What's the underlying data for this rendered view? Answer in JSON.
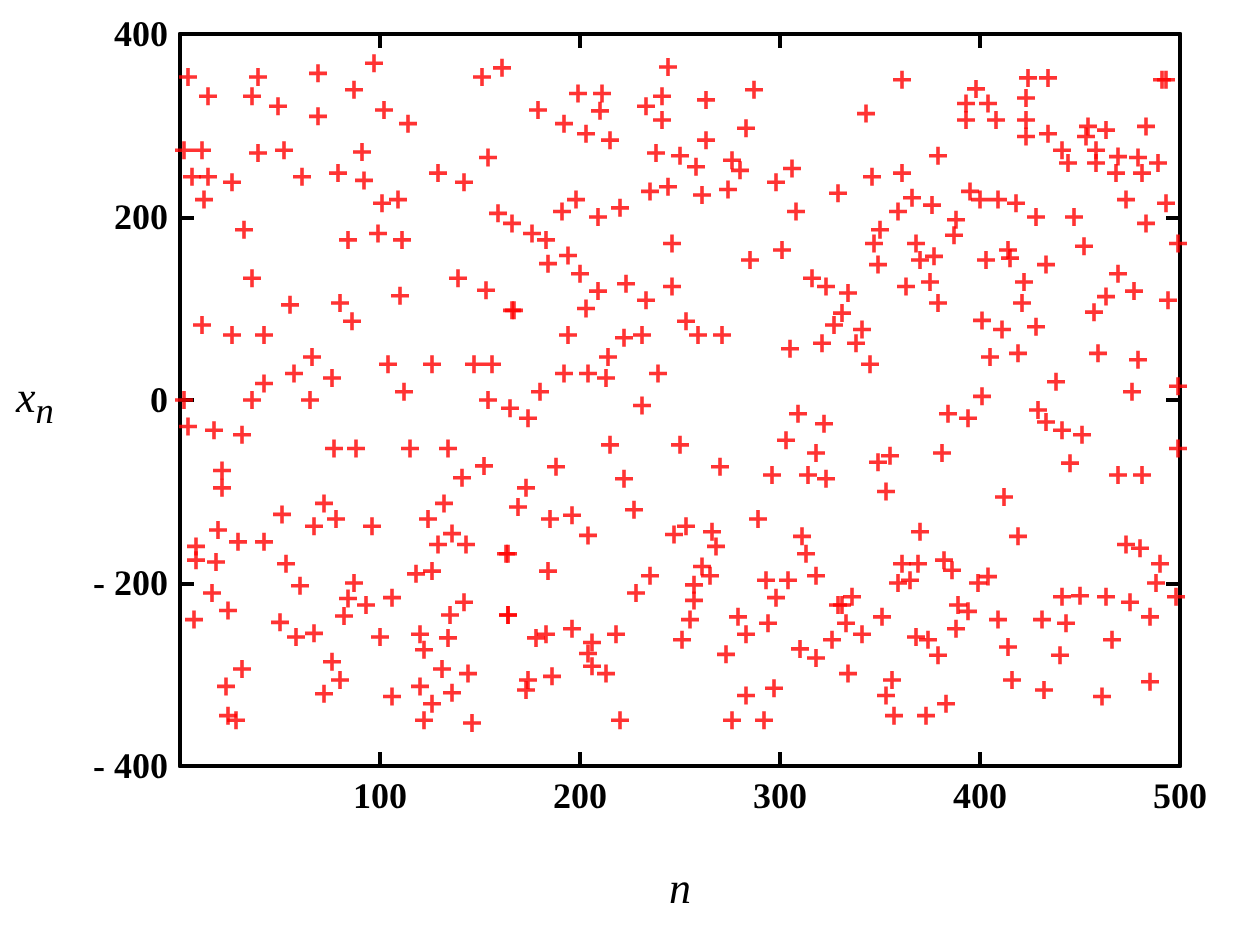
{
  "chart_data": {
    "type": "scatter",
    "xlabel": "n",
    "ylabel": "x$_{n}$",
    "xlim": [
      0,
      500
    ],
    "xticks": [
      100,
      200,
      300,
      400,
      500
    ],
    "ylim": [
      -400,
      400
    ],
    "yticks": [
      -400,
      -200,
      0,
      200,
      400
    ],
    "grid": false,
    "marker": "cross",
    "series": [
      {
        "color": "#ff0000",
        "x": [
          4,
          14,
          39,
          69,
          97,
          36,
          49,
          87,
          161,
          151,
          69,
          102,
          114,
          2,
          11,
          39,
          52,
          91,
          6,
          14,
          26,
          12,
          61,
          79,
          92,
          129,
          142,
          154,
          101,
          109,
          159,
          32,
          84,
          99,
          111,
          36,
          55,
          80,
          86,
          110,
          139,
          153,
          166,
          11,
          26,
          42,
          66,
          57,
          76,
          42,
          104,
          126,
          147,
          156,
          112,
          36,
          65,
          2,
          154,
          4,
          17,
          31,
          77,
          88,
          115,
          134,
          21,
          21,
          141,
          152,
          51,
          72,
          78,
          67,
          96,
          19,
          29,
          42,
          8,
          8,
          18,
          53,
          124,
          132,
          136,
          129,
          143,
          163,
          60,
          87,
          118,
          126,
          16,
          7,
          24,
          50,
          84,
          93,
          106,
          142,
          135,
          164,
          58,
          67,
          82,
          100,
          120,
          134,
          122,
          31,
          23,
          76,
          80,
          72,
          106,
          120,
          131,
          144,
          136,
          126,
          122,
          146,
          24,
          28,
          244,
          199,
          211,
          241,
          179,
          210,
          233,
          263,
          287,
          192,
          203,
          215,
          241,
          283,
          238,
          250,
          258,
          263,
          276,
          280,
          298,
          306,
          235,
          244,
          261,
          274,
          191,
          198,
          209,
          220,
          308,
          329,
          166,
          176,
          183,
          246,
          301,
          184,
          194,
          200,
          285,
          223,
          209,
          233,
          246,
          316,
          323,
          167,
          203,
          253,
          259,
          271,
          327,
          194,
          222,
          231,
          321,
          305,
          214,
          192,
          204,
          213,
          239,
          180,
          165,
          174,
          231,
          309,
          322,
          215,
          250,
          303,
          318,
          188,
          222,
          270,
          296,
          314,
          323,
          173,
          169,
          185,
          196,
          204,
          227,
          247,
          253,
          266,
          268,
          289,
          311,
          313,
          164,
          184,
          235,
          228,
          261,
          257,
          257,
          265,
          293,
          304,
          318,
          298,
          329,
          164,
          255,
          279,
          294,
          283,
          178,
          183,
          196,
          218,
          206,
          204,
          251,
          310,
          318,
          326,
          273,
          174,
          173,
          186,
          206,
          213,
          283,
          297,
          220,
          276,
          292,
          361,
          343,
          398,
          393,
          404,
          393,
          408,
          424,
          434,
          423,
          423,
          423,
          434,
          491,
          493,
          454,
          463,
          483,
          453,
          441,
          444,
          458,
          458,
          469,
          479,
          489,
          468,
          481,
          379,
          361,
          346,
          395,
          400,
          409,
          418,
          366,
          376,
          359,
          428,
          447,
          473,
          483,
          493,
          388,
          387,
          350,
          347,
          349,
          368,
          370,
          377,
          403,
          414,
          415,
          433,
          452,
          422,
          421,
          375,
          363,
          379,
          469,
          463,
          477,
          457,
          494,
          499,
          334,
          331,
          341,
          338,
          345,
          401,
          411,
          428,
          419,
          405,
          459,
          479,
          438,
          476,
          499,
          401,
          384,
          394,
          429,
          433,
          441,
          451,
          499,
          445,
          381,
          349,
          355,
          353,
          469,
          481,
          412,
          419,
          370,
          473,
          480,
          490,
          488,
          498,
          361,
          369,
          382,
          386,
          359,
          365,
          399,
          404,
          441,
          450,
          463,
          475,
          331,
          336,
          333,
          341,
          351,
          389,
          394,
          388,
          409,
          431,
          443,
          485,
          368,
          374,
          379,
          414,
          440,
          466,
          334,
          356,
          353,
          416,
          432,
          485,
          461,
          383,
          357,
          373
        ],
        "values": [
          353,
          332,
          353,
          357,
          368,
          332,
          321,
          339,
          363,
          353,
          310,
          317,
          302,
          273,
          273,
          270,
          273,
          271,
          244,
          244,
          238,
          219,
          244,
          248,
          240,
          248,
          238,
          265,
          215,
          219,
          204,
          186,
          175,
          182,
          175,
          133,
          104,
          106,
          86,
          114,
          133,
          120,
          98,
          82,
          71,
          71,
          47,
          29,
          24,
          18,
          39,
          39,
          39,
          39,
          9,
          0,
          0,
          0,
          0,
          -29,
          -33,
          -38,
          -53,
          -53,
          -53,
          -53,
          -77,
          -96,
          -85,
          -72,
          -125,
          -113,
          -130,
          -138,
          -138,
          -142,
          -155,
          -155,
          -160,
          -175,
          -177,
          -179,
          -130,
          -113,
          -146,
          -158,
          -158,
          -168,
          -203,
          -200,
          -190,
          -187,
          -211,
          -240,
          -230,
          -243,
          -217,
          -224,
          -216,
          -221,
          -235,
          -235,
          -259,
          -255,
          -236,
          -259,
          -256,
          -260,
          -273,
          -294,
          -313,
          -286,
          -306,
          -321,
          -324,
          -313,
          -294,
          -299,
          -320,
          -332,
          -350,
          -353,
          -345,
          -350,
          364,
          335,
          335,
          332,
          317,
          316,
          321,
          328,
          339,
          302,
          291,
          284,
          306,
          297,
          270,
          267,
          255,
          284,
          262,
          251,
          238,
          253,
          228,
          233,
          224,
          230,
          206,
          219,
          200,
          210,
          206,
          226,
          193,
          182,
          175,
          171,
          164,
          149,
          158,
          138,
          153,
          127,
          119,
          109,
          124,
          133,
          124,
          98,
          100,
          86,
          71,
          71,
          82,
          71,
          68,
          71,
          62,
          56,
          47,
          29,
          29,
          24,
          29,
          9,
          -9,
          -20,
          -6,
          -15,
          -26,
          -49,
          -49,
          -44,
          -58,
          -73,
          -86,
          -73,
          -82,
          -82,
          -86,
          -96,
          -117,
          -130,
          -126,
          -148,
          -120,
          -147,
          -138,
          -144,
          -160,
          -130,
          -149,
          -168,
          -168,
          -187,
          -192,
          -211,
          -182,
          -202,
          -219,
          -192,
          -197,
          -197,
          -192,
          -216,
          -224,
          -235,
          -240,
          -237,
          -244,
          -256,
          -260,
          -256,
          -250,
          -256,
          -265,
          -277,
          -262,
          -272,
          -282,
          -262,
          -278,
          -306,
          -317,
          -302,
          -291,
          -299,
          -323,
          -315,
          -350,
          -350,
          -350,
          350,
          313,
          340,
          324,
          324,
          306,
          306,
          352,
          352,
          330,
          306,
          288,
          291,
          350,
          350,
          299,
          295,
          299,
          288,
          273,
          259,
          273,
          259,
          266,
          265,
          259,
          248,
          248,
          267,
          248,
          244,
          228,
          219,
          219,
          215,
          221,
          213,
          206,
          200,
          200,
          219,
          193,
          215,
          197,
          180,
          186,
          171,
          148,
          171,
          153,
          157,
          153,
          164,
          155,
          148,
          168,
          129,
          106,
          129,
          124,
          106,
          138,
          113,
          119,
          96,
          109,
          171,
          117,
          95,
          77,
          62,
          39,
          87,
          77,
          80,
          51,
          47,
          51,
          44,
          20,
          9,
          15,
          4,
          -15,
          -20,
          -11,
          -24,
          -33,
          -38,
          -53,
          -69,
          -58,
          -68,
          -61,
          -100,
          -82,
          -82,
          -106,
          -149,
          -144,
          -158,
          -162,
          -179,
          -200,
          -215,
          -179,
          -179,
          -175,
          -186,
          -200,
          -197,
          -200,
          -193,
          -215,
          -214,
          -215,
          -221,
          -224,
          -215,
          -244,
          -256,
          -237,
          -224,
          -231,
          -250,
          -240,
          -240,
          -244,
          -237,
          -259,
          -262,
          -279,
          -270,
          -279,
          -262,
          -299,
          -306,
          -323,
          -306,
          -317,
          -308,
          -324,
          -332,
          -345,
          -345
        ]
      }
    ]
  }
}
